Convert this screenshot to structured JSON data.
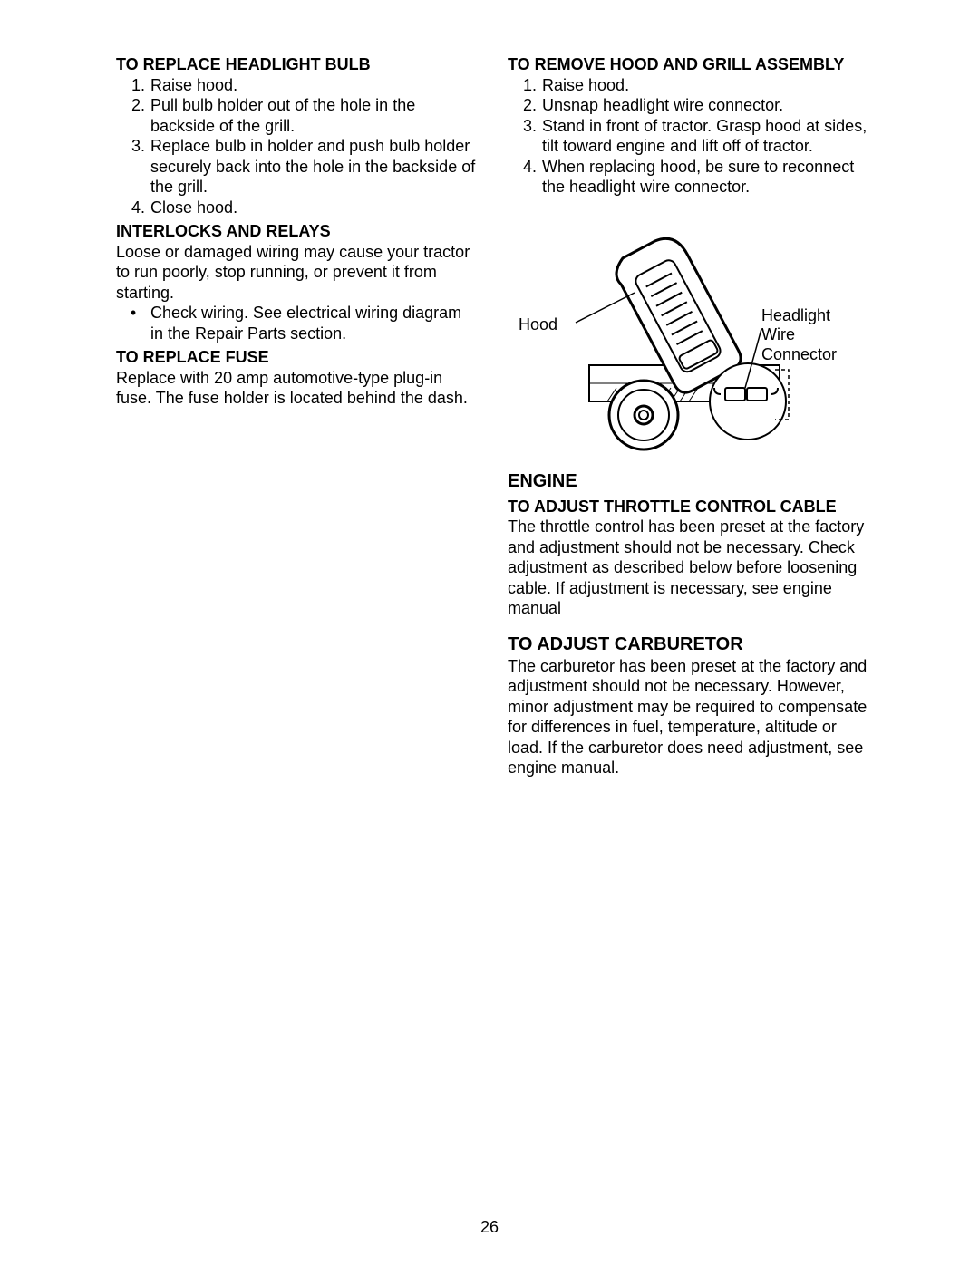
{
  "page_number": "26",
  "left": {
    "s1_heading": "TO REPLACE HEADLIGHT BULB",
    "s1_items": [
      "Raise hood.",
      "Pull bulb holder out of the hole in the backside of the grill.",
      "Replace bulb in holder and push bulb holder securely back into the hole in the backside of the grill.",
      "Close hood."
    ],
    "s2_heading": "INTERLOCKS AND RELAYS",
    "s2_para": "Loose or damaged wiring may cause your tractor to run poorly, stop running, or prevent it from starting.",
    "s2_bullets": [
      "Check wiring.  See electrical wiring diagram in the Repair Parts section."
    ],
    "s3_heading": "TO REPLACE FUSE",
    "s3_para": "Replace with 20 amp automotive-type plug-in fuse.  The fuse holder is located behind the dash."
  },
  "right": {
    "s1_heading": "TO REMOVE HOOD AND GRILL AS­SEMBLY",
    "s1_items": [
      "Raise hood.",
      "Unsnap headlight wire connector.",
      "Stand in front of tractor.  Grasp hood at sides, tilt toward engine and lift off of tractor.",
      "When replacing hood, be sure to re­connect the headlight wire connector."
    ],
    "diagram": {
      "label_hood": "Hood",
      "label_connector": "Headlight\nWire\nConnector",
      "stroke": "#000000",
      "background": "#ffffff"
    },
    "s2_heading": "ENGINE",
    "s2_subheading": "TO ADJUST THROTTLE CONTROL CABLE",
    "s2_para": "The throttle control has been preset at the factory and adjustment should not be nec­essary.  Check adjustment as described below before loosening cable.  If adjust­ment is necessary, see engine manual",
    "s3_heading": "TO ADJUST CARBURETOR",
    "s3_para": "The carburetor has been preset at the factory and adjustment should not be nec­essary.  However, minor adjustment may be required to compensate for differences in fuel, temperature, altitude or load.  If the carburetor does need adjustment, see engine manual."
  }
}
